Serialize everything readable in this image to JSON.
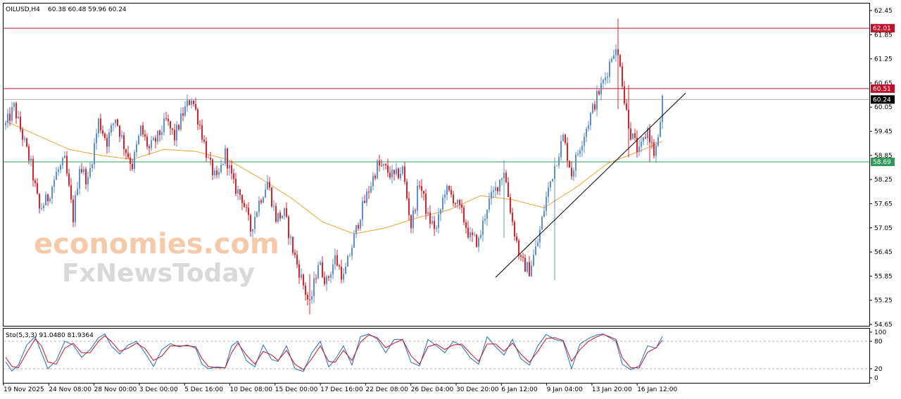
{
  "header": {
    "symbol": "OILUSD,H4",
    "ohlc": "60.38 60.48 59.96 60.24"
  },
  "watermark": {
    "line1": "economies.com",
    "line2": "FxNewsToday"
  },
  "colors": {
    "bull": "#5b8fd6",
    "bear": "#e0202a",
    "ma": "#f5a030",
    "level": "#c0102a",
    "support": "#2f9a5a",
    "price": "#000000",
    "sto_main": "#1f6fd0",
    "sto_signal": "#d0101e"
  },
  "levels": {
    "resistance_high": {
      "value": 62.01,
      "label": "62.01"
    },
    "resistance_low": {
      "value": 60.51,
      "label": "60.51"
    },
    "current": {
      "value": 60.24,
      "label": "60.24"
    },
    "support": {
      "value": 58.69,
      "label": "58.69"
    }
  },
  "chart_data": [
    {
      "type": "candlestick",
      "title": "OILUSD,H4",
      "ylim": [
        54.65,
        62.45
      ],
      "y_ticks": [
        "62.45",
        "61.85",
        "61.25",
        "60.65",
        "60.05",
        "59.45",
        "58.85",
        "58.25",
        "57.65",
        "57.05",
        "56.45",
        "55.85",
        "55.25",
        "54.65"
      ],
      "x_ticks": [
        "19 Nov 2025",
        "24 Nov 08:00",
        "28 Nov 00:00",
        "3 Dec 00:00",
        "5 Dec 16:00",
        "10 Dec 08:00",
        "15 Dec 00:00",
        "17 Dec 16:00",
        "22 Dec 08:00",
        "26 Dec 04:00",
        "30 Dec 20:00",
        "6 Jan 12:00",
        "9 Jan 04:00",
        "13 Jan 20:00",
        "16 Jan 12:00"
      ],
      "candle_count": 312,
      "close_path": [
        [
          0,
          59.6
        ],
        [
          4,
          60.05
        ],
        [
          7,
          59.5
        ],
        [
          12,
          58.6
        ],
        [
          16,
          57.5
        ],
        [
          20,
          57.8
        ],
        [
          24,
          58.4
        ],
        [
          28,
          58.7
        ],
        [
          32,
          57.3
        ],
        [
          35,
          58.6
        ],
        [
          39,
          58.2
        ],
        [
          44,
          59.7
        ],
        [
          48,
          59.2
        ],
        [
          52,
          59.8
        ],
        [
          56,
          59.1
        ],
        [
          60,
          58.6
        ],
        [
          64,
          59.5
        ],
        [
          68,
          59.0
        ],
        [
          72,
          59.3
        ],
        [
          76,
          59.7
        ],
        [
          80,
          59.3
        ],
        [
          84,
          59.9
        ],
        [
          88,
          60.3
        ],
        [
          92,
          59.6
        ],
        [
          96,
          58.7
        ],
        [
          100,
          58.2
        ],
        [
          104,
          58.9
        ],
        [
          108,
          58.1
        ],
        [
          112,
          57.8
        ],
        [
          116,
          57.0
        ],
        [
          120,
          57.7
        ],
        [
          124,
          58.2
        ],
        [
          128,
          57.3
        ],
        [
          132,
          57.4
        ],
        [
          136,
          56.5
        ],
        [
          140,
          55.8
        ],
        [
          144,
          55.1
        ],
        [
          148,
          56.2
        ],
        [
          152,
          55.7
        ],
        [
          156,
          56.3
        ],
        [
          160,
          55.8
        ],
        [
          164,
          56.6
        ],
        [
          168,
          57.4
        ],
        [
          172,
          58.0
        ],
        [
          176,
          58.6
        ],
        [
          180,
          58.5
        ],
        [
          184,
          58.3
        ],
        [
          188,
          58.5
        ],
        [
          192,
          57.1
        ],
        [
          196,
          58.2
        ],
        [
          200,
          57.3
        ],
        [
          204,
          57.0
        ],
        [
          208,
          58.0
        ],
        [
          212,
          57.8
        ],
        [
          216,
          57.4
        ],
        [
          220,
          56.8
        ],
        [
          224,
          56.7
        ],
        [
          228,
          57.6
        ],
        [
          232,
          58.0
        ],
        [
          236,
          58.5
        ],
        [
          240,
          57.2
        ],
        [
          244,
          56.2
        ],
        [
          248,
          56.0
        ],
        [
          252,
          56.7
        ],
        [
          256,
          57.8
        ],
        [
          260,
          58.6
        ],
        [
          264,
          59.3
        ],
        [
          268,
          58.4
        ],
        [
          272,
          59.1
        ],
        [
          276,
          59.7
        ],
        [
          280,
          60.3
        ],
        [
          284,
          60.8
        ],
        [
          288,
          61.5
        ],
        [
          291,
          61.2
        ],
        [
          293,
          60.2
        ],
        [
          296,
          59.4
        ],
        [
          300,
          58.9
        ],
        [
          304,
          59.5
        ],
        [
          307,
          58.9
        ],
        [
          309,
          59.2
        ],
        [
          311,
          60.24
        ]
      ],
      "events": [
        {
          "index": 290,
          "high": 62.25,
          "low": 60.0
        },
        {
          "index": 295,
          "high": 60.6,
          "low": 58.8
        },
        {
          "index": 305,
          "high": 59.1,
          "low": 58.69
        },
        {
          "index": 236,
          "high": 58.73,
          "low": 56.8
        },
        {
          "index": 144,
          "high": 55.9,
          "low": 54.9
        },
        {
          "index": 260,
          "high": 58.8,
          "low": 55.75
        }
      ],
      "ma_path": [
        [
          0,
          59.7
        ],
        [
          15,
          59.35
        ],
        [
          30,
          59.0
        ],
        [
          45,
          58.85
        ],
        [
          60,
          58.75
        ],
        [
          75,
          59.0
        ],
        [
          90,
          58.95
        ],
        [
          105,
          58.75
        ],
        [
          120,
          58.3
        ],
        [
          135,
          57.8
        ],
        [
          150,
          57.2
        ],
        [
          165,
          56.9
        ],
        [
          180,
          57.05
        ],
        [
          195,
          57.3
        ],
        [
          210,
          57.5
        ],
        [
          225,
          57.85
        ],
        [
          240,
          57.75
        ],
        [
          255,
          57.55
        ],
        [
          270,
          58.05
        ],
        [
          285,
          58.65
        ],
        [
          300,
          58.95
        ],
        [
          311,
          59.2
        ]
      ],
      "trendline": {
        "from": [
          232,
          55.82
        ],
        "to": [
          322,
          60.4
        ]
      }
    },
    {
      "type": "line",
      "title": "Sto(5,3,3) 91.0480 81.9364",
      "ylim": [
        0,
        100
      ],
      "y_ticks": [
        "100",
        "80",
        "20",
        "0"
      ],
      "guide_levels": [
        80,
        20
      ],
      "series": [
        {
          "points": [
            [
              0,
              35
            ],
            [
              3,
              15
            ],
            [
              6,
              28
            ],
            [
              10,
              72
            ],
            [
              14,
              90
            ],
            [
              17,
              55
            ],
            [
              20,
              20
            ],
            [
              24,
              38
            ],
            [
              28,
              80
            ],
            [
              32,
              72
            ],
            [
              36,
              45
            ],
            [
              40,
              62
            ],
            [
              44,
              88
            ],
            [
              47,
              96
            ],
            [
              50,
              70
            ],
            [
              54,
              52
            ],
            [
              58,
              72
            ],
            [
              62,
              80
            ],
            [
              66,
              55
            ],
            [
              70,
              25
            ],
            [
              74,
              62
            ],
            [
              78,
              75
            ],
            [
              82,
              68
            ],
            [
              86,
              72
            ],
            [
              90,
              65
            ],
            [
              93,
              30
            ],
            [
              96,
              20
            ],
            [
              100,
              24
            ],
            [
              104,
              22
            ],
            [
              107,
              70
            ],
            [
              110,
              80
            ],
            [
              114,
              38
            ],
            [
              118,
              24
            ],
            [
              122,
              72
            ],
            [
              126,
              40
            ],
            [
              129,
              36
            ],
            [
              133,
              70
            ],
            [
              137,
              20
            ],
            [
              141,
              14
            ],
            [
              145,
              55
            ],
            [
              149,
              80
            ],
            [
              153,
              24
            ],
            [
              156,
              40
            ],
            [
              160,
              70
            ],
            [
              164,
              28
            ],
            [
              168,
              90
            ],
            [
              172,
              96
            ],
            [
              176,
              85
            ],
            [
              180,
              55
            ],
            [
              184,
              84
            ],
            [
              188,
              84
            ],
            [
              192,
              34
            ],
            [
              196,
              26
            ],
            [
              200,
              84
            ],
            [
              204,
              70
            ],
            [
              208,
              55
            ],
            [
              212,
              80
            ],
            [
              216,
              70
            ],
            [
              220,
              44
            ],
            [
              224,
              30
            ],
            [
              228,
              90
            ],
            [
              232,
              68
            ],
            [
              236,
              50
            ],
            [
              240,
              84
            ],
            [
              244,
              42
            ],
            [
              248,
              28
            ],
            [
              252,
              70
            ],
            [
              256,
              95
            ],
            [
              260,
              84
            ],
            [
              264,
              80
            ],
            [
              268,
              20
            ],
            [
              272,
              74
            ],
            [
              276,
              86
            ],
            [
              280,
              94
            ],
            [
              283,
              96
            ],
            [
              286,
              88
            ],
            [
              289,
              80
            ],
            [
              292,
              30
            ],
            [
              296,
              18
            ],
            [
              300,
              26
            ],
            [
              304,
              70
            ],
            [
              308,
              65
            ],
            [
              311,
              91
            ]
          ],
          "role": "main"
        },
        {
          "points": [
            [
              0,
              45
            ],
            [
              3,
              25
            ],
            [
              6,
              22
            ],
            [
              10,
              55
            ],
            [
              14,
              85
            ],
            [
              17,
              70
            ],
            [
              20,
              35
            ],
            [
              24,
              30
            ],
            [
              28,
              65
            ],
            [
              32,
              76
            ],
            [
              36,
              55
            ],
            [
              40,
              55
            ],
            [
              44,
              80
            ],
            [
              47,
              92
            ],
            [
              50,
              80
            ],
            [
              54,
              58
            ],
            [
              58,
              65
            ],
            [
              62,
              76
            ],
            [
              66,
              64
            ],
            [
              70,
              38
            ],
            [
              74,
              48
            ],
            [
              78,
              70
            ],
            [
              82,
              70
            ],
            [
              86,
              70
            ],
            [
              90,
              68
            ],
            [
              93,
              42
            ],
            [
              96,
              25
            ],
            [
              100,
              22
            ],
            [
              104,
              22
            ],
            [
              107,
              55
            ],
            [
              110,
              76
            ],
            [
              114,
              50
            ],
            [
              118,
              30
            ],
            [
              122,
              58
            ],
            [
              126,
              50
            ],
            [
              129,
              38
            ],
            [
              133,
              60
            ],
            [
              137,
              30
            ],
            [
              141,
              18
            ],
            [
              145,
              42
            ],
            [
              149,
              70
            ],
            [
              153,
              36
            ],
            [
              156,
              34
            ],
            [
              160,
              60
            ],
            [
              164,
              38
            ],
            [
              168,
              78
            ],
            [
              172,
              94
            ],
            [
              176,
              88
            ],
            [
              180,
              66
            ],
            [
              184,
              76
            ],
            [
              188,
              84
            ],
            [
              192,
              48
            ],
            [
              196,
              30
            ],
            [
              200,
              68
            ],
            [
              204,
              74
            ],
            [
              208,
              62
            ],
            [
              212,
              72
            ],
            [
              216,
              74
            ],
            [
              220,
              54
            ],
            [
              224,
              36
            ],
            [
              228,
              74
            ],
            [
              232,
              74
            ],
            [
              236,
              58
            ],
            [
              240,
              76
            ],
            [
              244,
              52
            ],
            [
              248,
              34
            ],
            [
              252,
              58
            ],
            [
              256,
              86
            ],
            [
              260,
              88
            ],
            [
              264,
              82
            ],
            [
              268,
              36
            ],
            [
              272,
              62
            ],
            [
              276,
              80
            ],
            [
              280,
              90
            ],
            [
              283,
              95
            ],
            [
              286,
              90
            ],
            [
              289,
              84
            ],
            [
              292,
              44
            ],
            [
              296,
              22
            ],
            [
              300,
              22
            ],
            [
              304,
              56
            ],
            [
              308,
              66
            ],
            [
              311,
              82
            ]
          ],
          "role": "signal"
        }
      ]
    }
  ]
}
